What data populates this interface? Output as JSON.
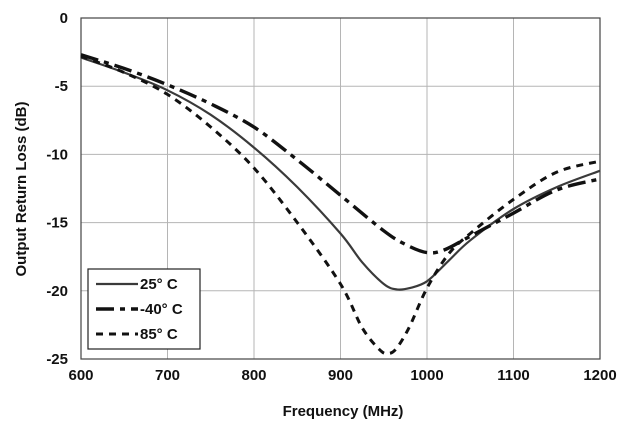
{
  "chart_data": {
    "type": "line",
    "title": "",
    "xlabel": "Frequency (MHz)",
    "ylabel": "Output Return Loss (dB)",
    "xlim": [
      600,
      1200
    ],
    "ylim": [
      -25,
      0
    ],
    "xticks": [
      600,
      700,
      800,
      900,
      1000,
      1100,
      1200
    ],
    "yticks": [
      0,
      -5,
      -10,
      -15,
      -20,
      -25
    ],
    "grid": true,
    "legend_position": "bottom-left",
    "series": [
      {
        "name": "25° C",
        "style": "solid",
        "color": "#3a3a3a",
        "x": [
          600,
          650,
          700,
          750,
          800,
          850,
          900,
          925,
          950,
          965,
          980,
          1000,
          1025,
          1050,
          1100,
          1150,
          1200
        ],
        "y": [
          -2.9,
          -4.0,
          -5.3,
          -7.1,
          -9.5,
          -12.4,
          -15.8,
          -17.9,
          -19.5,
          -19.9,
          -19.8,
          -19.3,
          -17.8,
          -16.3,
          -14.0,
          -12.4,
          -11.2
        ]
      },
      {
        "name": "-40° C",
        "style": "dash-dot",
        "color": "#111111",
        "x": [
          600,
          650,
          700,
          750,
          800,
          850,
          900,
          950,
          975,
          1000,
          1020,
          1050,
          1100,
          1150,
          1200
        ],
        "y": [
          -2.7,
          -3.7,
          -4.9,
          -6.3,
          -8.0,
          -10.4,
          -13.0,
          -15.6,
          -16.6,
          -17.2,
          -17.0,
          -16.0,
          -14.3,
          -12.6,
          -11.8
        ]
      },
      {
        "name": "85° C",
        "style": "dotted",
        "color": "#111111",
        "x": [
          600,
          650,
          700,
          750,
          800,
          850,
          900,
          925,
          945,
          955,
          965,
          980,
          1000,
          1025,
          1050,
          1100,
          1150,
          1200
        ],
        "y": [
          -2.8,
          -4.0,
          -5.6,
          -8.0,
          -11.0,
          -15.0,
          -19.5,
          -22.7,
          -24.3,
          -24.6,
          -24.2,
          -22.6,
          -19.8,
          -17.3,
          -15.8,
          -13.3,
          -11.3,
          -10.5
        ]
      }
    ]
  }
}
